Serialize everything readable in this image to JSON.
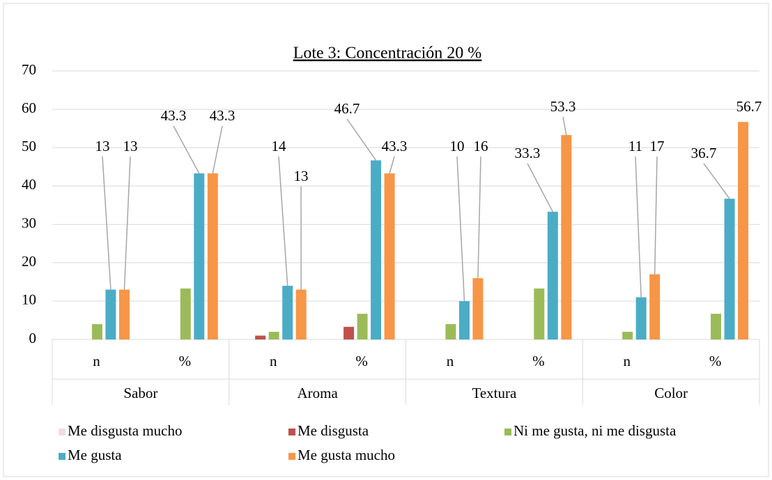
{
  "chart_data": {
    "type": "bar",
    "title": "Lote 3: Concentración 20 %",
    "categories": [
      "n",
      "%",
      "n",
      "%",
      "n",
      "%",
      "n",
      "%"
    ],
    "groups": [
      "Sabor",
      "Aroma",
      "Textura",
      "Color"
    ],
    "series": [
      {
        "name": "Me disgusta mucho",
        "color": "#f2dcdb",
        "values": [
          0,
          0,
          0,
          0,
          0,
          0,
          0,
          0
        ],
        "show_labels": false
      },
      {
        "name": "Me disgusta",
        "color": "#c0504d",
        "values": [
          0,
          0,
          1,
          3.3,
          0,
          0,
          0,
          0
        ],
        "show_labels": false
      },
      {
        "name": "Ni me gusta, ni me disgusta",
        "color": "#9bbb59",
        "values": [
          4,
          13.3,
          2,
          6.7,
          4,
          13.3,
          2,
          6.7
        ],
        "show_labels": false
      },
      {
        "name": "Me gusta",
        "color": "#4bacc6",
        "values": [
          13,
          43.3,
          14,
          46.7,
          10,
          33.3,
          11,
          36.7
        ],
        "show_labels": true
      },
      {
        "name": "Me gusta mucho",
        "color": "#f79646",
        "values": [
          13,
          43.3,
          13,
          43.3,
          16,
          53.3,
          17,
          56.7
        ],
        "show_labels": true
      }
    ],
    "ylim": [
      0,
      70
    ],
    "yticks": [
      0,
      10,
      20,
      30,
      40,
      50,
      60,
      70
    ],
    "grid": true,
    "legend": "bottom"
  }
}
